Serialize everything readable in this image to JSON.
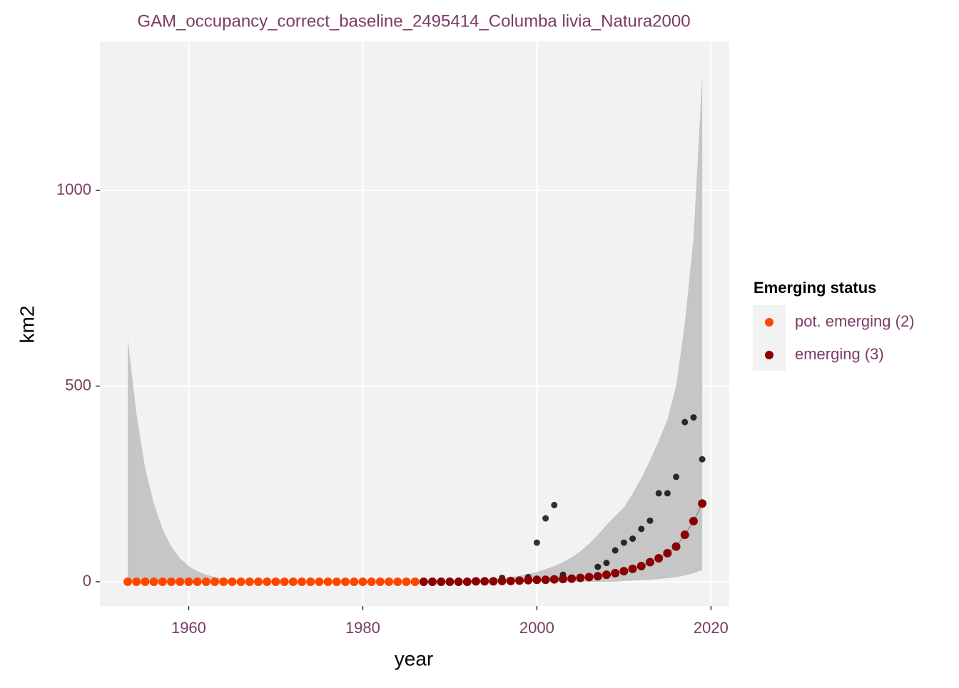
{
  "chart_data": {
    "type": "scatter",
    "title": "GAM_occupancy_correct_baseline_2495414_Columba livia_Natura2000",
    "x_label": "year",
    "y_label": "km2",
    "legend_title": "Emerging status",
    "xlim": [
      1949.8,
      2022.1
    ],
    "ylim": [
      -62,
      1381
    ],
    "xticks": [
      1960,
      1980,
      2000,
      2020
    ],
    "yticks": [
      0,
      500,
      1000
    ],
    "grid": true,
    "ribbon": {
      "color": "#bebebe",
      "x": [
        1953,
        1954,
        1955,
        1956,
        1957,
        1958,
        1959,
        1960,
        1961,
        1962,
        1963,
        1964,
        1965,
        1966,
        1967,
        1968,
        1969,
        1970,
        1971,
        1972,
        1973,
        1974,
        1975,
        1976,
        1977,
        1978,
        1979,
        1980,
        1981,
        1982,
        1983,
        1984,
        1985,
        1986,
        1987,
        1988,
        1989,
        1990,
        1991,
        1992,
        1993,
        1994,
        1995,
        1996,
        1997,
        1998,
        1999,
        2000,
        2001,
        2002,
        2003,
        2004,
        2005,
        2006,
        2007,
        2008,
        2009,
        2010,
        2011,
        2012,
        2013,
        2014,
        2015,
        2016,
        2017,
        2018,
        2019
      ],
      "upper": [
        620,
        430,
        290,
        200,
        135,
        90,
        60,
        40,
        27,
        18,
        12,
        8,
        5,
        3,
        2,
        1,
        1,
        1,
        1,
        1,
        1,
        1,
        1,
        1,
        1,
        1,
        1,
        1,
        1,
        1,
        1,
        1,
        1,
        1,
        1,
        1,
        1,
        2,
        2,
        3,
        4,
        5,
        7,
        9,
        12,
        15,
        20,
        25,
        32,
        40,
        50,
        62,
        78,
        97,
        120,
        145,
        168,
        190,
        225,
        265,
        310,
        360,
        415,
        500,
        660,
        880,
        1295
      ],
      "lower": [
        0,
        0,
        0,
        0,
        0,
        0,
        0,
        0,
        0,
        0,
        0,
        0,
        0,
        0,
        0,
        0,
        0,
        0,
        0,
        0,
        0,
        0,
        0,
        0,
        0,
        0,
        0,
        0,
        0,
        0,
        0,
        0,
        0,
        0,
        0,
        0,
        0,
        0,
        0,
        0,
        0,
        0,
        0,
        0,
        0,
        0,
        0,
        0,
        0,
        0,
        0,
        0,
        0,
        0,
        0,
        0,
        0,
        2,
        3,
        4,
        5,
        7,
        9,
        12,
        16,
        22,
        30
      ]
    },
    "observed": {
      "color": "#000000",
      "x": [
        1996,
        1999,
        2000,
        2001,
        2002,
        2003,
        2007,
        2008,
        2009,
        2010,
        2011,
        2012,
        2013,
        2014,
        2015,
        2016,
        2017,
        2018,
        2019
      ],
      "values": [
        10,
        12,
        100,
        162,
        196,
        18,
        38,
        48,
        80,
        100,
        110,
        135,
        156,
        226,
        226,
        268,
        408,
        420,
        313
      ]
    },
    "series": [
      {
        "name": "pot. emerging (2)",
        "color": "#ff4500",
        "x": [
          1953,
          1954,
          1955,
          1956,
          1957,
          1958,
          1959,
          1960,
          1961,
          1962,
          1963,
          1964,
          1965,
          1966,
          1967,
          1968,
          1969,
          1970,
          1971,
          1972,
          1973,
          1974,
          1975,
          1976,
          1977,
          1978,
          1979,
          1980,
          1981,
          1982,
          1983,
          1984,
          1985,
          1986
        ],
        "values": [
          0,
          0,
          0,
          0,
          0,
          0,
          0,
          0,
          0,
          0,
          0,
          0,
          0,
          0,
          0,
          0,
          0,
          0,
          0,
          0,
          0,
          0,
          0,
          0,
          0,
          0,
          0,
          0,
          0,
          0,
          0,
          0,
          0,
          0
        ]
      },
      {
        "name": "emerging (3)",
        "color": "#8b0000",
        "x": [
          1987,
          1988,
          1989,
          1990,
          1991,
          1992,
          1993,
          1994,
          1995,
          1996,
          1997,
          1998,
          1999,
          2000,
          2001,
          2002,
          2003,
          2004,
          2005,
          2006,
          2007,
          2008,
          2009,
          2010,
          2011,
          2012,
          2013,
          2014,
          2015,
          2016,
          2017,
          2018,
          2019
        ],
        "values": [
          0,
          0,
          0,
          0,
          0,
          0,
          1,
          1,
          1,
          2,
          2,
          3,
          4,
          5,
          5,
          6,
          7,
          8,
          10,
          12,
          14,
          18,
          22,
          27,
          33,
          40,
          50,
          60,
          73,
          90,
          120,
          155,
          200
        ]
      }
    ]
  }
}
